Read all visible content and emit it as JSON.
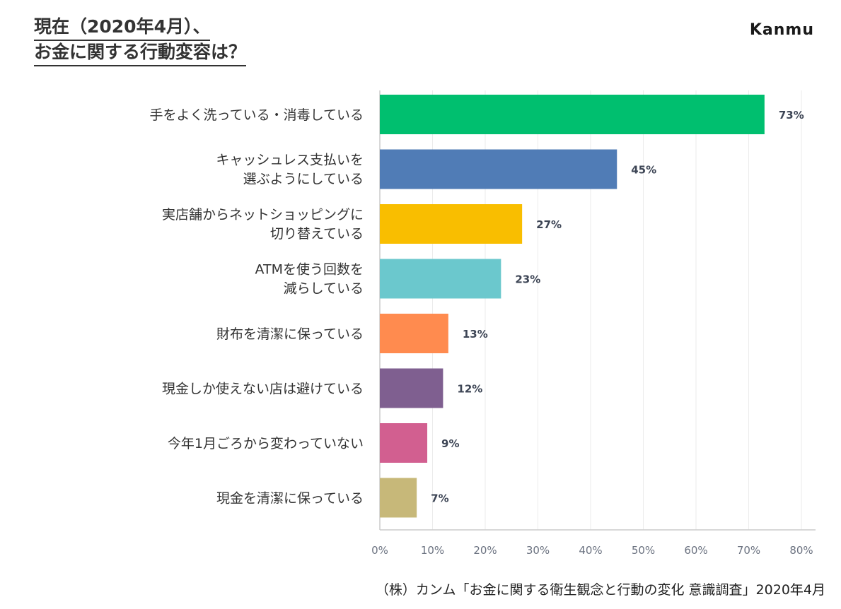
{
  "header": {
    "title_line1": "現在（2020年4月）、",
    "title_line2": "お金に関する行動変容は？",
    "logo": "Kanmu"
  },
  "chart_data": {
    "type": "bar",
    "orientation": "horizontal",
    "categories": [
      [
        "手をよく洗っている・消毒している"
      ],
      [
        "キャッシュレス支払いを",
        "選ぶようにしている"
      ],
      [
        "実店舗からネットショッピングに",
        "切り替えている"
      ],
      [
        "ATMを使う回数を",
        "減らしている"
      ],
      [
        "財布を清潔に保っている"
      ],
      [
        "現金しか使えない店は避けている"
      ],
      [
        "今年1月ごろから変わっていない"
      ],
      [
        "現金を清潔に保っている"
      ]
    ],
    "values": [
      73,
      45,
      27,
      23,
      13,
      12,
      9,
      7
    ],
    "value_labels": [
      "73%",
      "45%",
      "27%",
      "23%",
      "13%",
      "12%",
      "9%",
      "7%"
    ],
    "colors": [
      "#00bf6f",
      "#507cb6",
      "#f9be00",
      "#6bc8cd",
      "#ff8b4f",
      "#7f5f90",
      "#d25f90",
      "#c7b879"
    ],
    "xlim": [
      0,
      80
    ],
    "xticks": [
      "0%",
      "10%",
      "20%",
      "30%",
      "40%",
      "50%",
      "60%",
      "70%",
      "80%"
    ],
    "grid": true
  },
  "footer": {
    "source": "（株）カンム「お金に関する衛生観念と行動の変化 意識調査」2020年4月"
  }
}
